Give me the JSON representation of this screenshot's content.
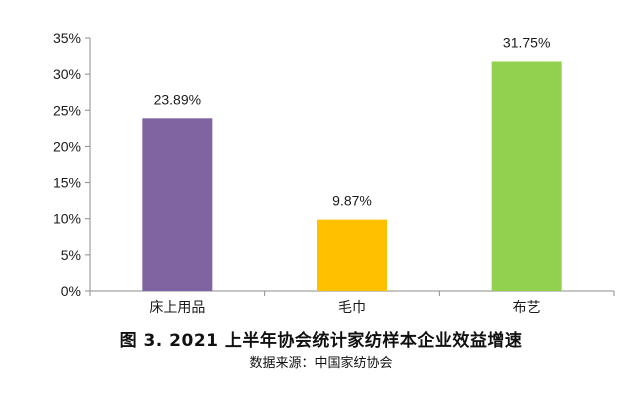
{
  "chart_data": {
    "type": "bar",
    "categories": [
      "床上用品",
      "毛巾",
      "布艺"
    ],
    "values": [
      23.89,
      9.87,
      31.75
    ],
    "data_labels": [
      "23.89%",
      "9.87%",
      "31.75%"
    ],
    "colors": [
      "#8064A2",
      "#FFC000",
      "#92D050"
    ],
    "ylim": [
      0,
      35
    ],
    "yticks": [
      "0%",
      "5%",
      "10%",
      "15%",
      "20%",
      "25%",
      "30%",
      "35%"
    ],
    "grid": false,
    "legend": "none",
    "title": "图 3. 2021 上半年协会统计家纺样本企业效益增速",
    "source": "数据来源：中国家纺协会"
  }
}
